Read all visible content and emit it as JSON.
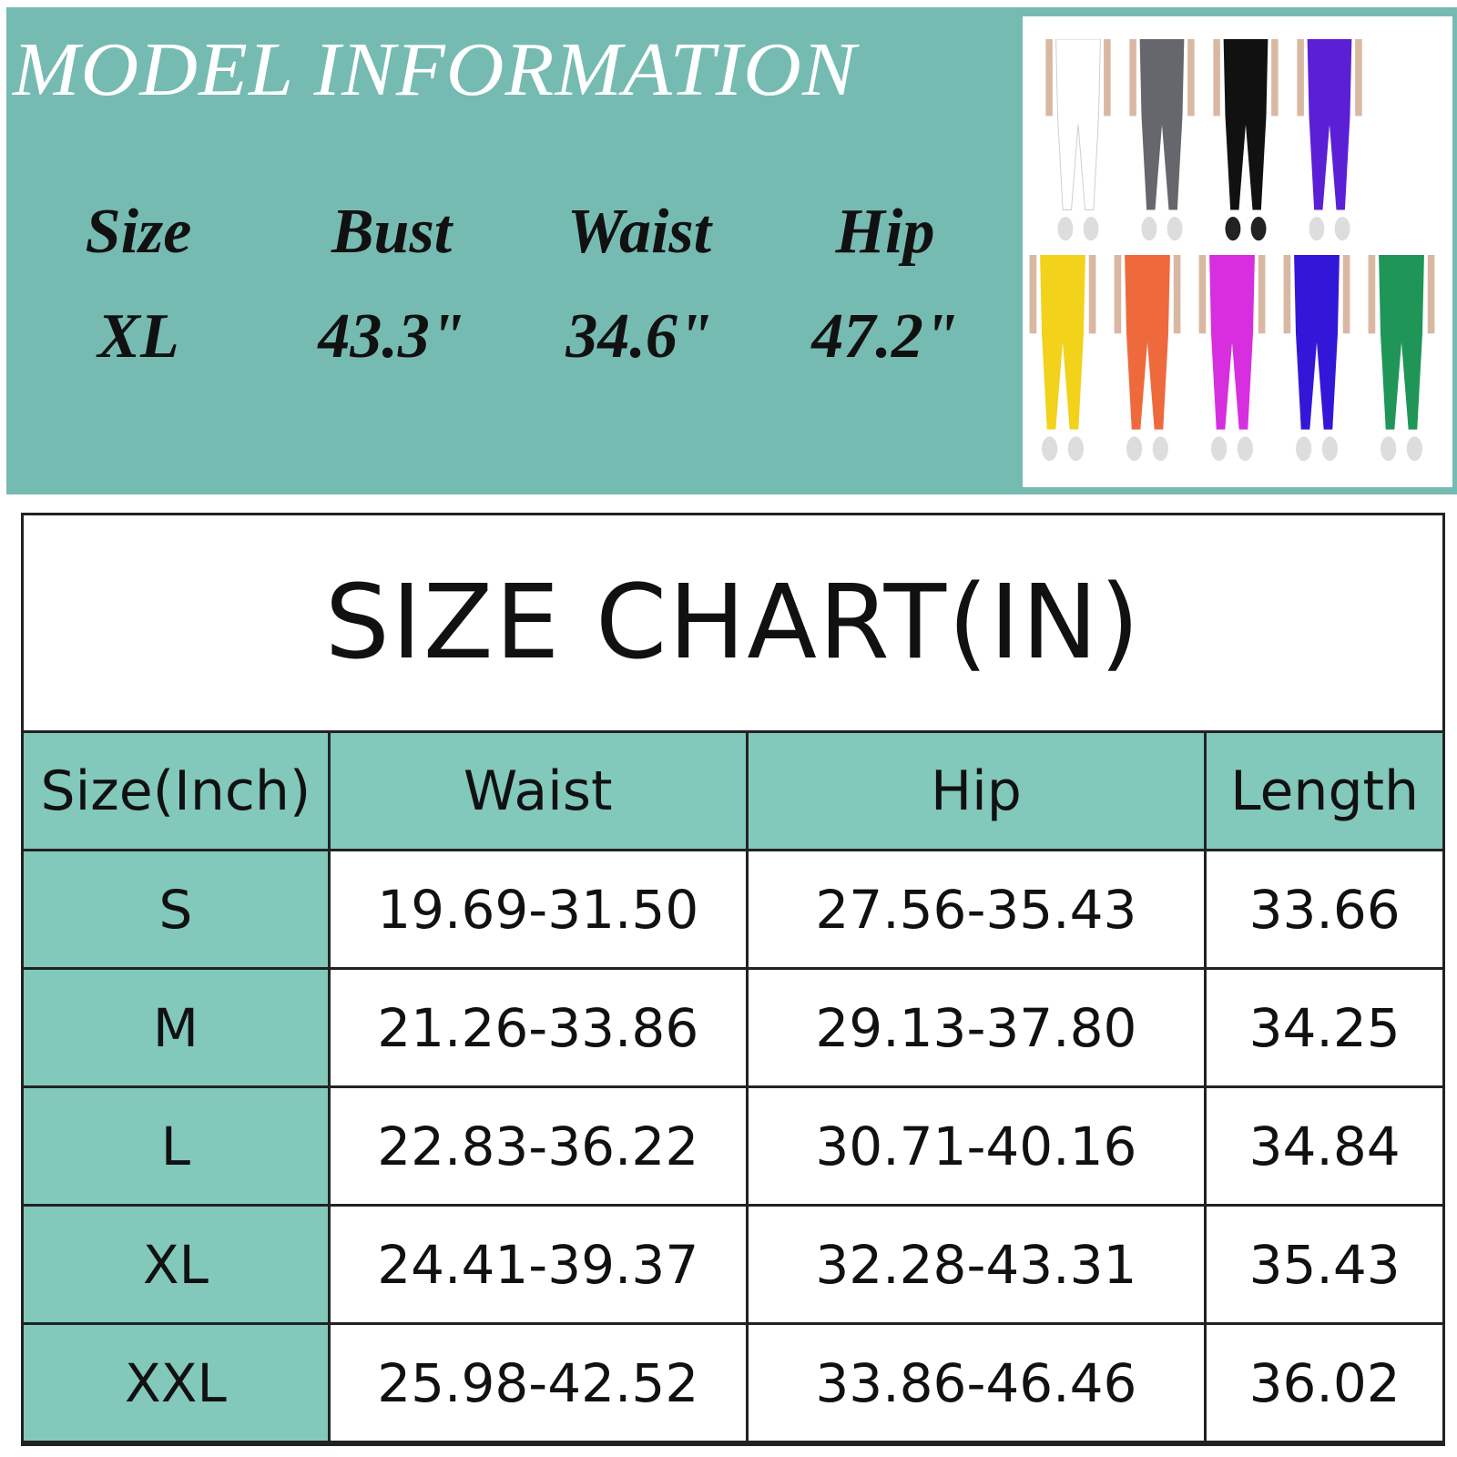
{
  "model_info": {
    "title": "MODEL INFORMATION",
    "headers": [
      "Size",
      "Bust",
      "Waist",
      "Hip"
    ],
    "values": [
      "XL",
      "43.3\"",
      "34.6\"",
      "47.2\""
    ],
    "background_color": "#76bbb2"
  },
  "product_photo": {
    "colors_row1": [
      "#ffffff",
      "#66676c",
      "#111111",
      "#5b1fd6"
    ],
    "colors_row2": [
      "#f3d21c",
      "#ee6a3c",
      "#d72ee0",
      "#3317d8",
      "#1f9558"
    ]
  },
  "size_chart": {
    "title": "SIZE CHART(IN)",
    "columns": [
      "Size(Inch)",
      "Waist",
      "Hip",
      "Length"
    ],
    "rows": [
      {
        "size": "S",
        "waist": "19.69-31.50",
        "hip": "27.56-35.43",
        "length": "33.66"
      },
      {
        "size": "M",
        "waist": "21.26-33.86",
        "hip": "29.13-37.80",
        "length": "34.25"
      },
      {
        "size": "L",
        "waist": "22.83-36.22",
        "hip": "30.71-40.16",
        "length": "34.84"
      },
      {
        "size": "XL",
        "waist": "24.41-39.37",
        "hip": "32.28-43.31",
        "length": "35.43"
      },
      {
        "size": "XXL",
        "waist": "25.98-42.52",
        "hip": "33.86-46.46",
        "length": "36.02"
      }
    ],
    "header_color": "#82c8bb"
  }
}
